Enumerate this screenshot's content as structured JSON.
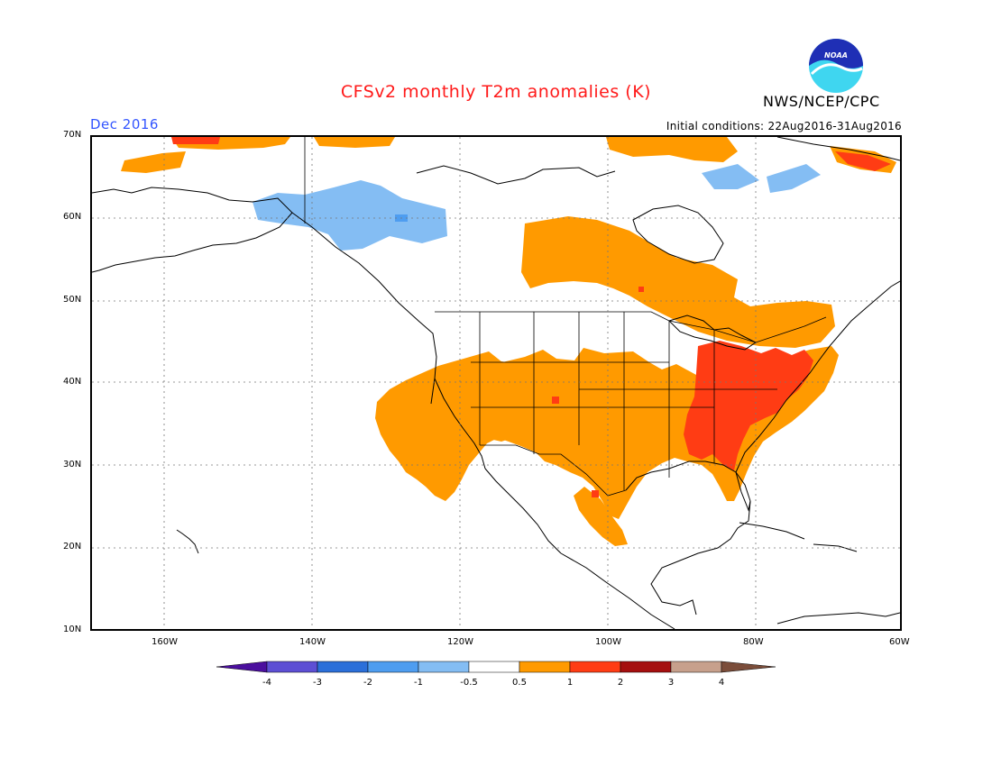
{
  "title": "CFSv2 monthly T2m anomalies (K)",
  "agency": "NWS/NCEP/CPC",
  "logo_label": "NOAA",
  "month": "Dec 2016",
  "initial_conditions": "Initial conditions: 22Aug2016-31Aug2016",
  "lat_labels": [
    {
      "text": "70N"
    },
    {
      "text": "60N"
    },
    {
      "text": "50N"
    },
    {
      "text": "40N"
    },
    {
      "text": "30N"
    },
    {
      "text": "20N"
    },
    {
      "text": "10N"
    }
  ],
  "lon_labels": [
    {
      "text": "160W"
    },
    {
      "text": "140W"
    },
    {
      "text": "120W"
    },
    {
      "text": "100W"
    },
    {
      "text": "80W"
    },
    {
      "text": "60W"
    }
  ],
  "colorbar": {
    "labels": [
      "-4",
      "-3",
      "-2",
      "-1",
      "-0.5",
      "0.5",
      "1",
      "2",
      "3",
      "4"
    ],
    "colors": [
      "#4b0f9e",
      "#5d4fd4",
      "#2b6fd9",
      "#4e9df0",
      "#84bdf3",
      "#ffffff",
      "#ff9a00",
      "#ff3c14",
      "#a50f0f",
      "#c7a08c",
      "#7b4d3a"
    ]
  },
  "colors": {
    "warm1": "#ff9a00",
    "warm2": "#ff3c14",
    "warm3": "#d7261b",
    "cool1": "#84bdf3",
    "cool2": "#4e9df0",
    "title": "#ff1a1a",
    "month": "#3355ff"
  }
}
